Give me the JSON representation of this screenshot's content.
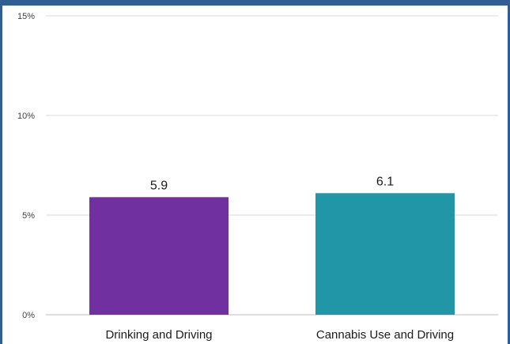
{
  "chart_data": {
    "type": "bar",
    "categories": [
      "Drinking and Driving",
      "Cannabis Use and Driving"
    ],
    "values": [
      5.9,
      6.1
    ],
    "data_labels": [
      "5.9",
      "6.1"
    ],
    "y_ticks": [
      0,
      5,
      10,
      15
    ],
    "y_tick_labels": [
      "0%",
      "5%",
      "10%",
      "15%"
    ],
    "ylim": [
      0,
      15
    ],
    "title": "",
    "xlabel": "",
    "ylabel": "",
    "grid": true,
    "legend": "none",
    "colors": [
      "#7030a0",
      "#2196a6"
    ]
  }
}
